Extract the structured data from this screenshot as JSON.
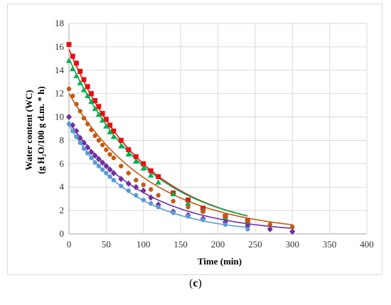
{
  "caption": {
    "open": "(",
    "letter": "c",
    "close": ")"
  },
  "chart_data": {
    "type": "scatter",
    "title": "",
    "xlabel": "Time (min)",
    "ylabel_line1": "Water content (WC)",
    "ylabel_line2": "(g H₂O/100 g d.m. * h)",
    "xlim": [
      0,
      400
    ],
    "ylim": [
      0,
      18
    ],
    "xticks": [
      0,
      50,
      100,
      150,
      200,
      250,
      300,
      350,
      400
    ],
    "yticks": [
      0,
      2,
      4,
      6,
      8,
      10,
      12,
      14,
      16,
      18
    ],
    "grid": true,
    "legend": "none",
    "series": [
      {
        "color": "#e8100f",
        "marker": "square",
        "x": [
          0,
          5,
          10,
          15,
          20,
          25,
          30,
          35,
          40,
          45,
          50,
          55,
          60,
          70,
          80,
          90,
          100,
          110,
          120,
          140,
          160,
          180,
          210,
          240
        ],
        "y": [
          16.2,
          15.2,
          14.6,
          13.9,
          13.2,
          12.6,
          12.0,
          11.4,
          10.9,
          10.3,
          9.8,
          9.3,
          8.8,
          8.0,
          7.2,
          6.6,
          6.0,
          5.4,
          4.9,
          3.5,
          2.9,
          2.2,
          1.5,
          1.1
        ],
        "fit_x": [
          0,
          240
        ],
        "fit": {
          "a": 15.8,
          "k": 0.0097
        }
      },
      {
        "color": "#00b050",
        "marker": "triangle",
        "x": [
          0,
          5,
          10,
          15,
          20,
          25,
          30,
          35,
          40,
          45,
          50,
          55,
          60,
          70,
          80,
          90,
          100,
          110,
          120,
          140,
          160,
          180,
          210,
          240
        ],
        "y": [
          14.8,
          14.1,
          13.5,
          12.9,
          12.3,
          11.8,
          11.3,
          10.7,
          10.2,
          9.7,
          9.2,
          8.7,
          8.3,
          7.5,
          6.8,
          6.2,
          5.6,
          5.0,
          4.4,
          3.4,
          2.6,
          2.0,
          1.4,
          1.0
        ],
        "fit_x": [
          0,
          240
        ],
        "fit": {
          "a": 15.0,
          "k": 0.0095
        }
      },
      {
        "color": "#c55a11",
        "marker": "circle",
        "x": [
          0,
          5,
          10,
          15,
          20,
          25,
          30,
          35,
          40,
          45,
          50,
          55,
          60,
          70,
          80,
          90,
          100,
          110,
          120,
          140,
          160,
          180,
          210,
          240,
          270,
          300
        ],
        "y": [
          12.4,
          11.8,
          11.1,
          10.5,
          9.9,
          9.4,
          8.9,
          8.4,
          8.0,
          7.6,
          7.2,
          6.8,
          6.5,
          5.8,
          5.2,
          4.6,
          4.2,
          3.8,
          3.3,
          2.8,
          2.3,
          1.9,
          1.5,
          1.1,
          0.8,
          0.6
        ],
        "fit_x": [
          0,
          300
        ],
        "fit": {
          "a": 12.0,
          "k": 0.0091
        }
      },
      {
        "color": "#7030a0",
        "marker": "diamond",
        "x": [
          0,
          5,
          10,
          15,
          20,
          25,
          30,
          35,
          40,
          45,
          50,
          55,
          60,
          70,
          80,
          90,
          100,
          110,
          120,
          140,
          160,
          180,
          210,
          240,
          270,
          300
        ],
        "y": [
          10.0,
          9.3,
          8.8,
          8.2,
          7.8,
          7.4,
          7.0,
          6.7,
          6.4,
          6.1,
          5.8,
          5.5,
          5.2,
          4.7,
          4.3,
          4.0,
          3.7,
          3.1,
          2.5,
          1.9,
          1.6,
          1.3,
          1.0,
          0.7,
          0.4,
          0.2
        ],
        "fit_x": [
          0,
          300
        ],
        "fit": {
          "a": 9.6,
          "k": 0.01
        }
      },
      {
        "color": "#5b9bd5",
        "marker": "circle",
        "x": [
          0,
          5,
          10,
          15,
          20,
          25,
          30,
          35,
          40,
          45,
          50,
          55,
          60,
          70,
          80,
          90,
          100,
          110,
          120,
          140,
          160,
          180,
          210,
          240
        ],
        "y": [
          9.4,
          8.8,
          8.3,
          7.8,
          7.3,
          6.9,
          6.5,
          6.1,
          5.8,
          5.5,
          5.2,
          4.9,
          4.6,
          4.1,
          3.7,
          3.3,
          2.9,
          2.6,
          2.3,
          1.8,
          1.5,
          1.2,
          0.8,
          0.4
        ],
        "fit_x": [
          0,
          240
        ],
        "fit": {
          "a": 9.3,
          "k": 0.0118
        }
      }
    ]
  }
}
